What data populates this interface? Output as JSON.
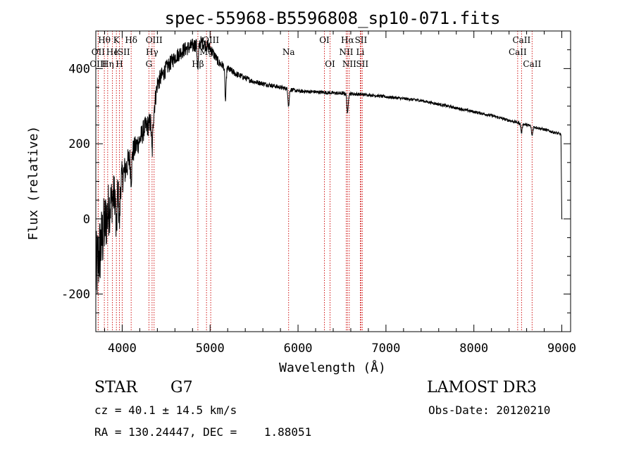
{
  "chart_data": {
    "type": "line",
    "title": "spec-55968-B5596808_sp10-071.fits",
    "xlabel": "Wavelength (Å)",
    "ylabel": "Flux (relative)",
    "xlim": [
      3700,
      9100
    ],
    "ylim": [
      -300,
      500
    ],
    "xticks": [
      4000,
      5000,
      6000,
      7000,
      8000,
      9000
    ],
    "yticks": [
      -200,
      0,
      200,
      400
    ],
    "x_minor_step": 200,
    "y_minor_step": 50,
    "spectrum_anchors": {
      "x": [
        3700,
        3750,
        3800,
        3850,
        3900,
        3950,
        4000,
        4050,
        4100,
        4150,
        4200,
        4250,
        4300,
        4350,
        4400,
        4500,
        4600,
        4700,
        4800,
        4900,
        5000,
        5100,
        5200,
        5300,
        5400,
        5500,
        5700,
        5900,
        6000,
        6200,
        6400,
        6600,
        6800,
        7000,
        7200,
        7400,
        7600,
        7800,
        8000,
        8200,
        8400,
        8600,
        8800,
        8990,
        9000
      ],
      "flux": [
        -150,
        -80,
        -20,
        30,
        60,
        90,
        110,
        140,
        170,
        190,
        210,
        240,
        250,
        270,
        360,
        400,
        430,
        450,
        460,
        470,
        455,
        415,
        400,
        385,
        375,
        365,
        355,
        345,
        340,
        338,
        335,
        333,
        330,
        325,
        320,
        315,
        305,
        295,
        285,
        275,
        262,
        250,
        238,
        225,
        0
      ],
      "noise": [
        110,
        100,
        90,
        75,
        60,
        50,
        45,
        40,
        35,
        32,
        30,
        30,
        30,
        28,
        26,
        22,
        20,
        20,
        20,
        18,
        16,
        12,
        10,
        9,
        8,
        7,
        6,
        6,
        5,
        5,
        5,
        5,
        4,
        4,
        4,
        4,
        4,
        4,
        4,
        4,
        4,
        4,
        4,
        4,
        0
      ]
    },
    "absorption_dips": [
      {
        "x": 3934,
        "depth": 120
      },
      {
        "x": 3968,
        "depth": 110
      },
      {
        "x": 4102,
        "depth": 60
      },
      {
        "x": 4340,
        "depth": 90
      },
      {
        "x": 4861,
        "depth": 70
      },
      {
        "x": 5175,
        "depth": 90
      },
      {
        "x": 5893,
        "depth": 45
      },
      {
        "x": 6563,
        "depth": 55
      },
      {
        "x": 8542,
        "depth": 25
      },
      {
        "x": 8662,
        "depth": 25
      }
    ],
    "spectral_lines": [
      {
        "label": "Hθ",
        "x": 3797,
        "row": 0
      },
      {
        "label": "OII",
        "x": 3727,
        "row": 1
      },
      {
        "label": "OIII",
        "x": 3727,
        "row": 2
      },
      {
        "label": "K",
        "x": 3934,
        "row": 0
      },
      {
        "label": "He",
        "x": 3889,
        "row": 1
      },
      {
        "label": "Hη",
        "x": 3835,
        "row": 2
      },
      {
        "label": "Hδ",
        "x": 4102,
        "row": 0
      },
      {
        "label": "ISII",
        "x": 4000,
        "row": 1
      },
      {
        "label": "H",
        "x": 3968,
        "row": 2
      },
      {
        "label": "OIII",
        "x": 4363,
        "row": 0
      },
      {
        "label": "Hγ",
        "x": 4340,
        "row": 1
      },
      {
        "label": "G",
        "x": 4304,
        "row": 2
      },
      {
        "label": "OIII",
        "x": 5007,
        "row": 0
      },
      {
        "label": "Mg",
        "x": 4959,
        "row": 1
      },
      {
        "label": "Hβ",
        "x": 4861,
        "row": 2
      },
      {
        "label": "Na",
        "x": 5893,
        "row": 1
      },
      {
        "label": "OI",
        "x": 6300,
        "row": 0
      },
      {
        "label": "OI",
        "x": 6364,
        "row": 2
      },
      {
        "label": "Hα",
        "x": 6563,
        "row": 0
      },
      {
        "label": "SII",
        "x": 6716,
        "row": 0
      },
      {
        "label": "NII",
        "x": 6548,
        "row": 1
      },
      {
        "label": "Li",
        "x": 6708,
        "row": 1
      },
      {
        "label": "NII",
        "x": 6583,
        "row": 2
      },
      {
        "label": "SII",
        "x": 6731,
        "row": 2
      },
      {
        "label": "CaII",
        "x": 8542,
        "row": 0
      },
      {
        "label": "CaII",
        "x": 8498,
        "row": 1
      },
      {
        "label": "CaII",
        "x": 8662,
        "row": 2
      }
    ],
    "line_color": "#000000",
    "marker_color": "#cc0000"
  },
  "info": {
    "class": "STAR",
    "subclass": "G7",
    "survey": "LAMOST DR3",
    "redshift": "cz = 40.1 ± 14.5 km/s",
    "obs_date": "Obs-Date: 20120210",
    "coords": "RA = 130.24447, DEC =    1.88051"
  }
}
